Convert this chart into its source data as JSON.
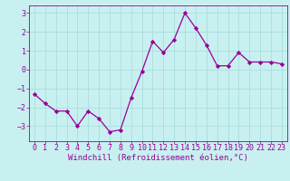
{
  "x": [
    0,
    1,
    2,
    3,
    4,
    5,
    6,
    7,
    8,
    9,
    10,
    11,
    12,
    13,
    14,
    15,
    16,
    17,
    18,
    19,
    20,
    21,
    22,
    23
  ],
  "y": [
    -1.3,
    -1.8,
    -2.2,
    -2.2,
    -3.0,
    -2.2,
    -2.6,
    -3.3,
    -3.2,
    -1.5,
    -0.1,
    1.5,
    0.9,
    1.6,
    3.0,
    2.2,
    1.3,
    0.2,
    0.2,
    0.9,
    0.4,
    0.4,
    0.4,
    0.3
  ],
  "line_color": "#990099",
  "marker": "D",
  "marker_size": 2.2,
  "background_color": "#c8f0f0",
  "grid_color": "#aadddd",
  "xlabel": "Windchill (Refroidissement éolien,°C)",
  "xlabel_color": "#990099",
  "xlabel_fontsize": 6.5,
  "tick_color": "#990099",
  "tick_fontsize": 6.0,
  "ylim": [
    -3.8,
    3.4
  ],
  "yticks": [
    -3,
    -2,
    -1,
    0,
    1,
    2,
    3
  ],
  "xlim": [
    -0.5,
    23.5
  ],
  "xticks": [
    0,
    1,
    2,
    3,
    4,
    5,
    6,
    7,
    8,
    9,
    10,
    11,
    12,
    13,
    14,
    15,
    16,
    17,
    18,
    19,
    20,
    21,
    22,
    23
  ]
}
